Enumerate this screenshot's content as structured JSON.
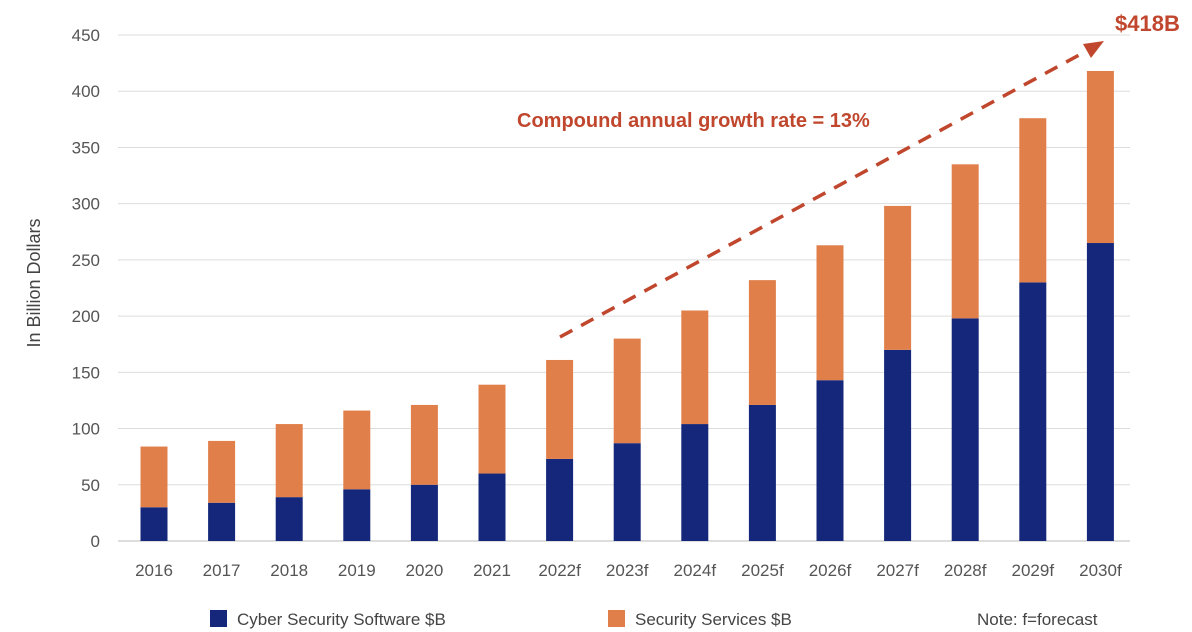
{
  "chart_data": {
    "type": "bar",
    "stacked": true,
    "categories": [
      "2016",
      "2017",
      "2018",
      "2019",
      "2020",
      "2021",
      "2022f",
      "2023f",
      "2024f",
      "2025f",
      "2026f",
      "2027f",
      "2028f",
      "2029f",
      "2030f"
    ],
    "series": [
      {
        "name": "Cyber Security Software $B",
        "color": "#14277a",
        "values": [
          30,
          34,
          39,
          46,
          50,
          60,
          73,
          87,
          104,
          121,
          143,
          170,
          198,
          230,
          265
        ]
      },
      {
        "name": "Security Services $B",
        "color": "#e07f4a",
        "values": [
          54,
          55,
          65,
          70,
          71,
          79,
          88,
          93,
          101,
          111,
          120,
          128,
          137,
          146,
          153
        ]
      }
    ],
    "ylabel": "In Billion Dollars",
    "ylim": [
      0,
      450
    ],
    "yticks": [
      0,
      50,
      100,
      150,
      200,
      250,
      300,
      350,
      400,
      450
    ],
    "grid": true,
    "legend_position": "bottom",
    "annotations": {
      "growth": "Compound annual growth rate = 13%",
      "total": "$418B",
      "note": "Note: f=forecast",
      "color": "#c0472d"
    }
  }
}
